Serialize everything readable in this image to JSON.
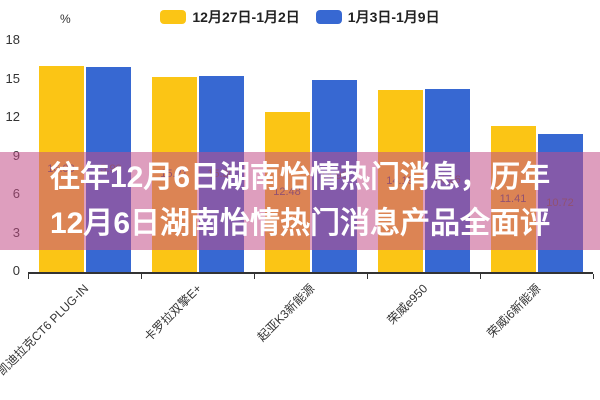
{
  "legend": {
    "items": [
      {
        "label": "12月27日-1月2日",
        "color": "#FBC515"
      },
      {
        "label": "1月3日-1月9日",
        "color": "#3768D2"
      }
    ]
  },
  "overlay": {
    "line1": "往年12月6日湖南怡情热门消息，历年",
    "line2": "12月6日湖南怡情热门消息产品全面评",
    "bg": "rgba(195,79,137,0.55)",
    "text_color": "#ffffff"
  },
  "chart_data": {
    "type": "bar",
    "unit": "%",
    "title": "",
    "categories": [
      "凯迪拉克CT6 PLUG-IN",
      "卡罗拉双擎E+",
      "起亚K3新能源",
      "荣威e950",
      "荣威i6新能源"
    ],
    "series": [
      {
        "name": "12月27日-1月2日",
        "color": "#FBC515",
        "values": [
          16.09,
          15.21,
          12.48,
          14.19,
          11.41
        ],
        "labels": [
          "16.09",
          "15.21",
          "12.48",
          "14.19",
          "11.41"
        ]
      },
      {
        "name": "1月3日-1月9日",
        "color": "#3768D2",
        "values": [
          15.99,
          15.3,
          14.96,
          14.26,
          10.72
        ],
        "labels": [
          "15.99",
          "15.30",
          "14.96",
          "14.26",
          "10.72"
        ]
      }
    ],
    "ylim": [
      0,
      18
    ],
    "yticks": [
      18,
      15,
      12,
      9,
      6,
      3,
      0
    ],
    "grid": false,
    "legend_position": "top",
    "value_label_position": "inside-center",
    "axis_color": "#333333",
    "value_label_color": "#555555"
  }
}
